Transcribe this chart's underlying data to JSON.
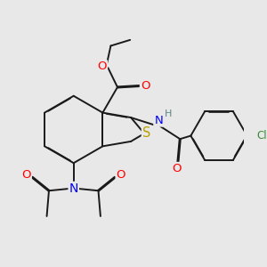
{
  "bg_color": "#e8e8e8",
  "bond_color": "#1a1a1a",
  "bond_width": 1.4,
  "dbo": 0.018,
  "atom_colors": {
    "O": "#ff0000",
    "N": "#0000ff",
    "S": "#b8a000",
    "Cl": "#3a8a3a",
    "H": "#5a8888",
    "C": "#1a1a1a"
  },
  "font_size": 8.5
}
